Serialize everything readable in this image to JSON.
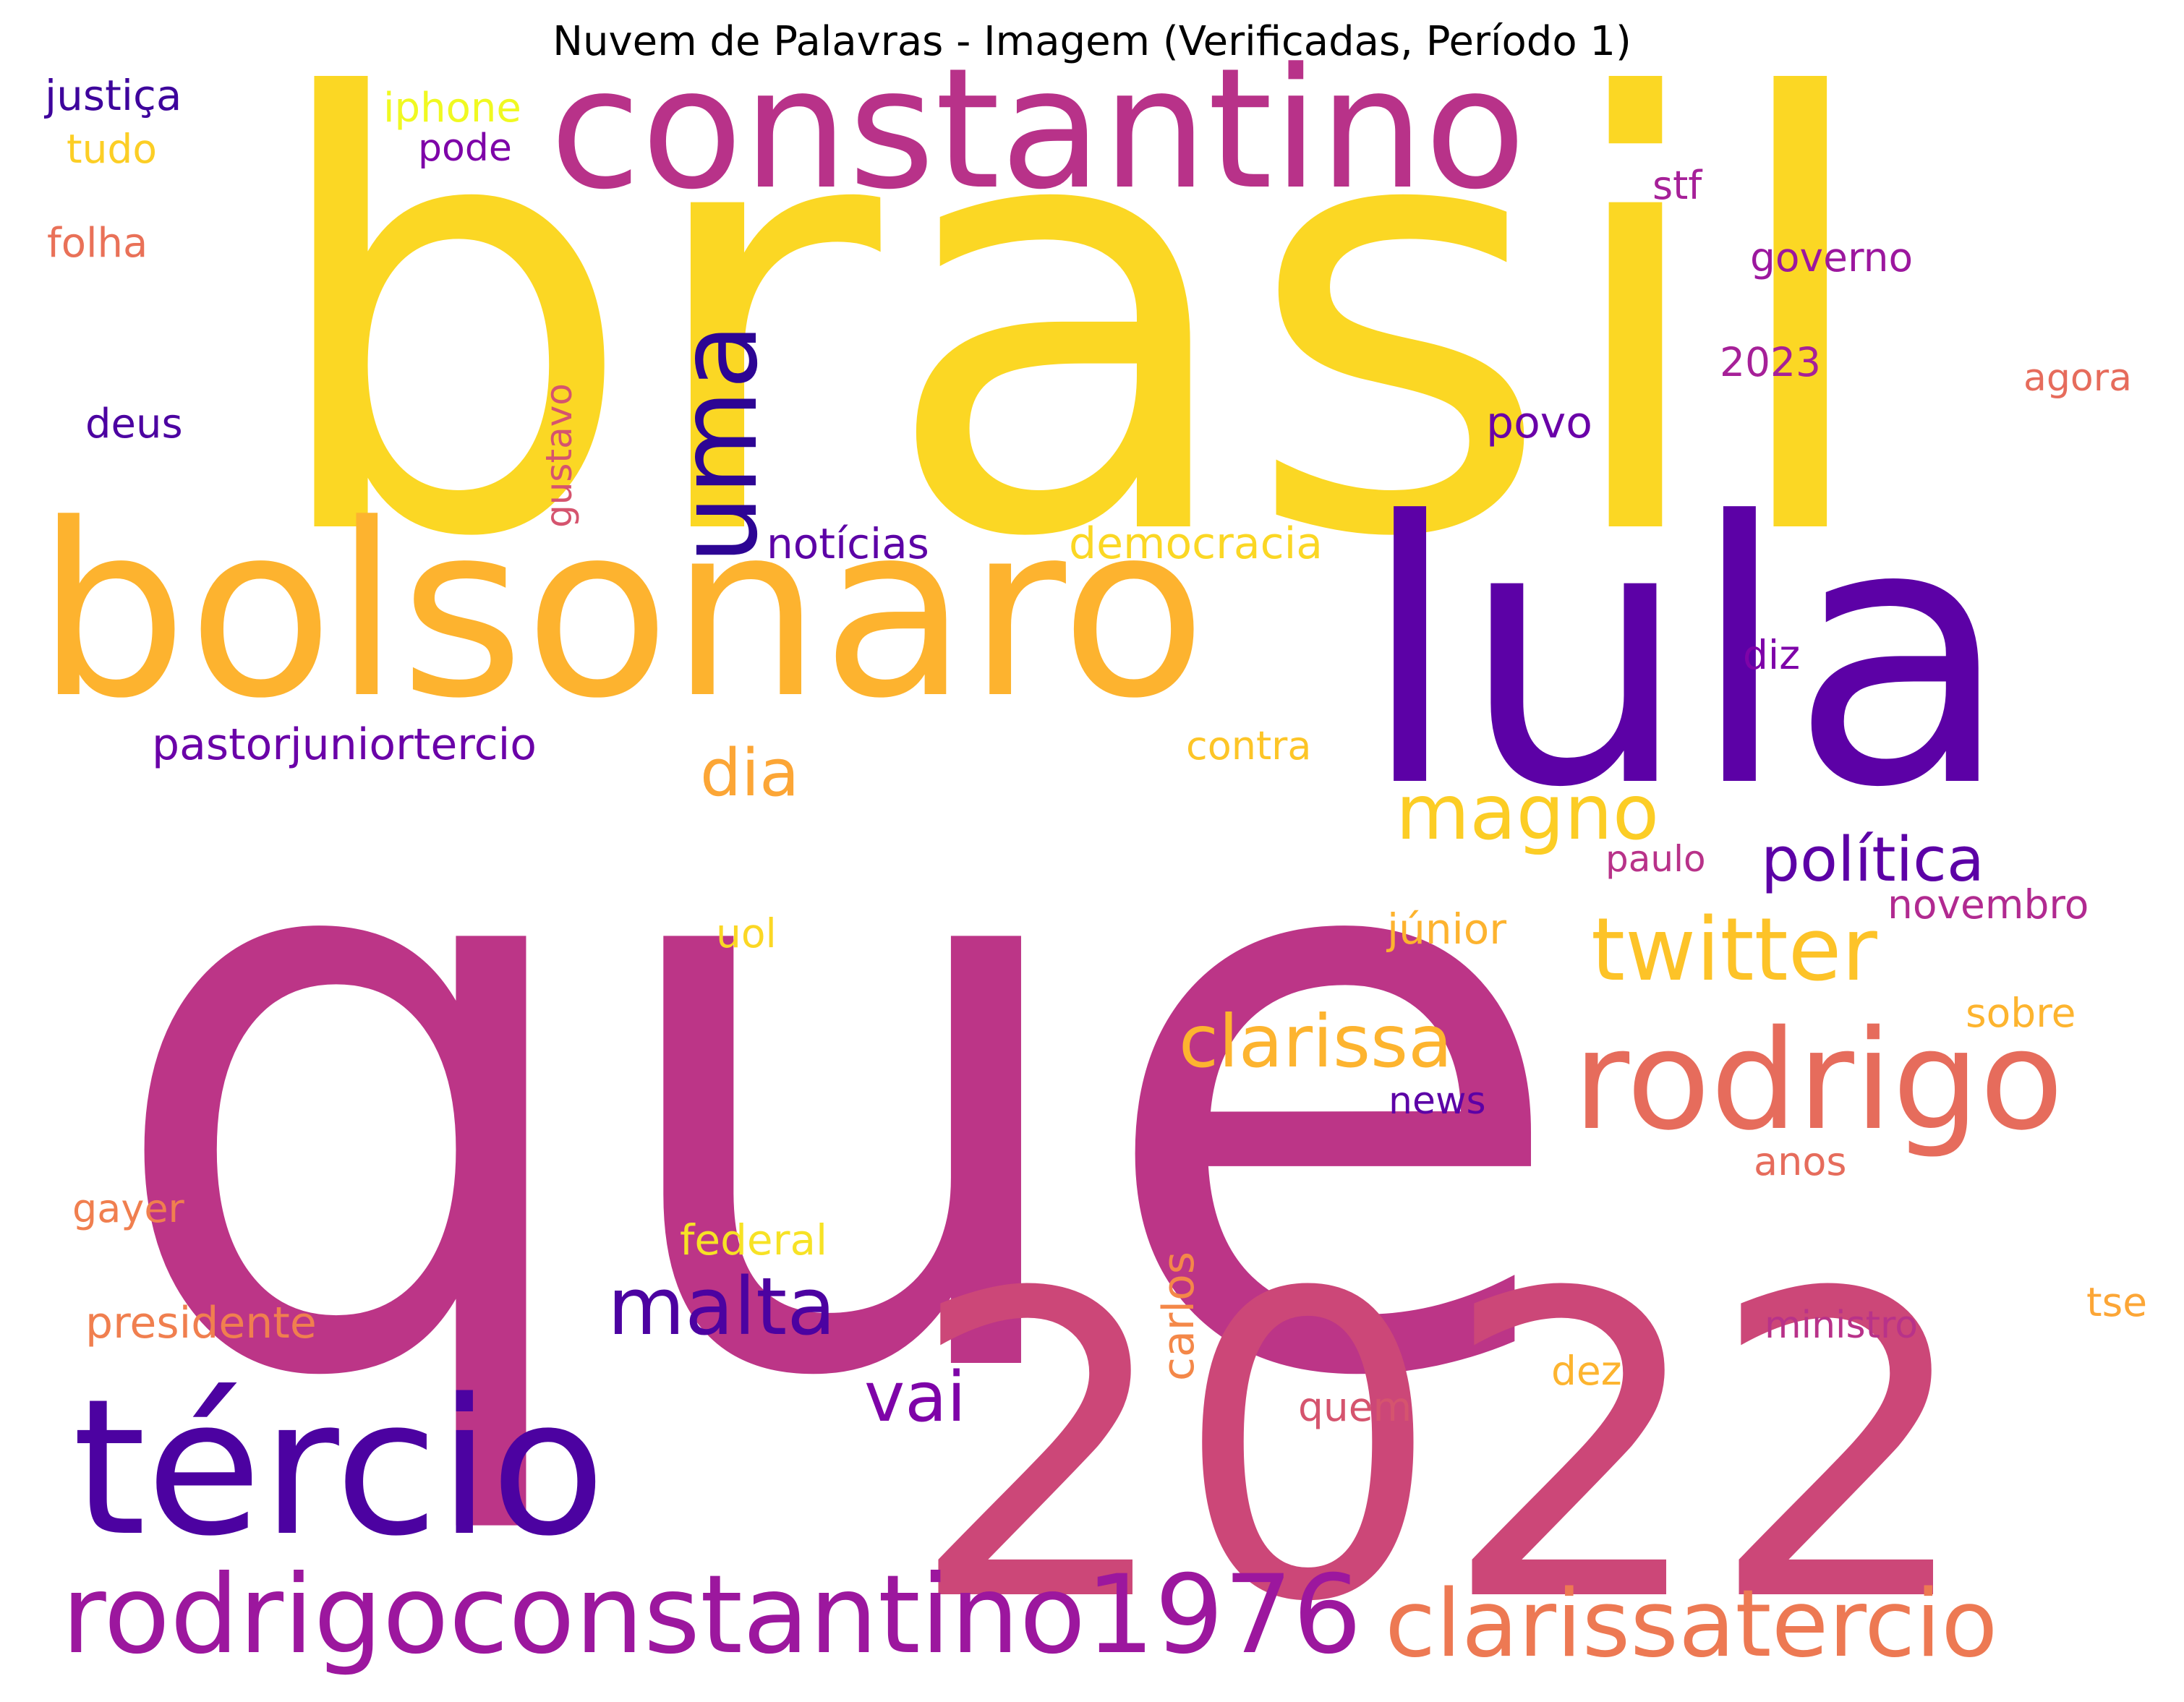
{
  "title": "Nuvem de Palavras - Imagem (Verificadas, Período 1)",
  "palette": {
    "yellow": "#fbd724",
    "gold": "#fdb32f",
    "orange": "#f48849",
    "salmon": "#e66c5c",
    "rose": "#cc4778",
    "magenta": "#bc3587",
    "plum": "#9c179e",
    "violet": "#6a00a8",
    "indigo": "#3e049c"
  },
  "words": [
    {
      "text": "que",
      "color": "#bc3587"
    },
    {
      "text": "brasil",
      "color": "#fbd724"
    },
    {
      "text": "2022",
      "color": "#cc4778"
    },
    {
      "text": "lula",
      "color": "#5c01a6"
    },
    {
      "text": "bolsonaro",
      "color": "#fdb32f"
    },
    {
      "text": "constantino",
      "color": "#b83289"
    },
    {
      "text": "tércio",
      "color": "#4c02a1"
    },
    {
      "text": "rodrigo",
      "color": "#e66c5c"
    },
    {
      "text": "clarissatercio",
      "color": "#ed7953"
    },
    {
      "text": "rodrigoconstantino1976",
      "color": "#9c179e"
    },
    {
      "text": "uma",
      "color": "#2d0594"
    },
    {
      "text": "twitter",
      "color": "#fdc328"
    },
    {
      "text": "clarissa",
      "color": "#fdb42f"
    },
    {
      "text": "magno",
      "color": "#fccd25"
    },
    {
      "text": "malta",
      "color": "#4c02a1"
    },
    {
      "text": "dia",
      "color": "#fca636"
    },
    {
      "text": "política",
      "color": "#5c01a6"
    },
    {
      "text": "vai",
      "color": "#7e03a8"
    },
    {
      "text": "pastorjuniortercio",
      "color": "#6a00a8"
    },
    {
      "text": "democracia",
      "color": "#fbd724"
    },
    {
      "text": "notícias",
      "color": "#5c01a6"
    },
    {
      "text": "presidente",
      "color": "#f07f4f"
    },
    {
      "text": "justiça",
      "color": "#3e049c"
    },
    {
      "text": "iphone",
      "color": "#f0f921"
    },
    {
      "text": "pode",
      "color": "#7e03a8"
    },
    {
      "text": "tudo",
      "color": "#fcce25"
    },
    {
      "text": "folha",
      "color": "#e97158"
    },
    {
      "text": "deus",
      "color": "#4c02a1"
    },
    {
      "text": "gustavo",
      "color": "#d5546e"
    },
    {
      "text": "povo",
      "color": "#6a00a8"
    },
    {
      "text": "stf",
      "color": "#a62098"
    },
    {
      "text": "governo",
      "color": "#9c179e"
    },
    {
      "text": "2023",
      "color": "#a62098"
    },
    {
      "text": "agora",
      "color": "#e66c5c"
    },
    {
      "text": "diz",
      "color": "#7e03a8"
    },
    {
      "text": "contra",
      "color": "#fdc527"
    },
    {
      "text": "paulo",
      "color": "#b83289"
    },
    {
      "text": "novembro",
      "color": "#b12a90"
    },
    {
      "text": "júnior",
      "color": "#fdb32f"
    },
    {
      "text": "uol",
      "color": "#fbd724"
    },
    {
      "text": "sobre",
      "color": "#fdb42f"
    },
    {
      "text": "news",
      "color": "#5c01a6"
    },
    {
      "text": "anos",
      "color": "#e66c5c"
    },
    {
      "text": "gayer",
      "color": "#f07f4f"
    },
    {
      "text": "federal",
      "color": "#f7e225"
    },
    {
      "text": "carlos",
      "color": "#f48849"
    },
    {
      "text": "ministro",
      "color": "#b83289"
    },
    {
      "text": "tse",
      "color": "#fca636"
    },
    {
      "text": "dez",
      "color": "#fdb42f"
    },
    {
      "text": "quem",
      "color": "#d5546e"
    }
  ]
}
